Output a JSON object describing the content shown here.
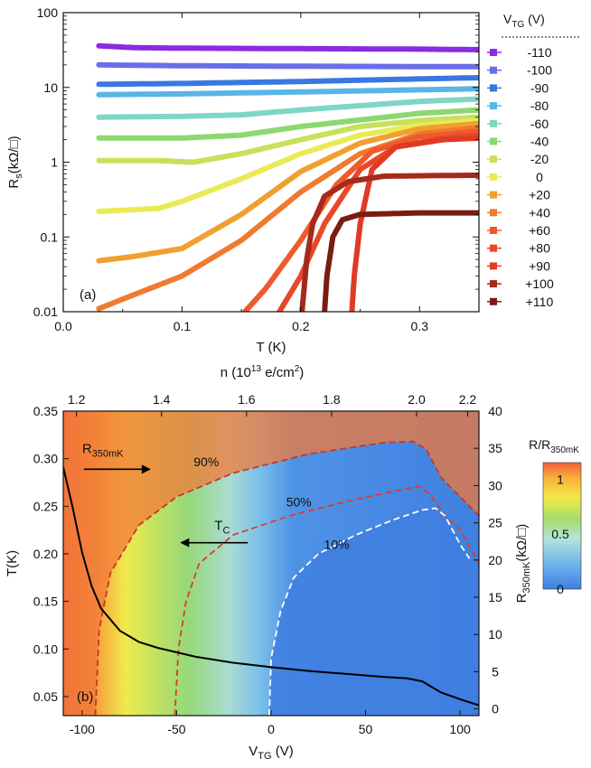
{
  "chart_data": [
    {
      "panel": "(a)",
      "type": "line",
      "xlabel": "T (K)",
      "ylabel_main": "R",
      "ylabel_sub": "s",
      "ylabel_unit": "(kΩ/□)",
      "xlim": [
        0.0,
        0.35
      ],
      "ylim": [
        0.01,
        100
      ],
      "yscale": "log",
      "x_ticks": [
        "0.0",
        "0.1",
        "0.2",
        "0.3"
      ],
      "x_tick_values": [
        0.0,
        0.1,
        0.2,
        0.3
      ],
      "y_ticks": [
        "0.01",
        "0.1",
        "1",
        "10",
        "100"
      ],
      "y_tick_values": [
        0.01,
        0.1,
        1,
        10,
        100
      ],
      "legend_title_main": "V",
      "legend_title_sub": "TG",
      "legend_title_unit": " (V)",
      "legend_position": "right",
      "series": [
        {
          "name": "-110",
          "color": "#8a2be2",
          "points": [
            [
              0.03,
              36
            ],
            [
              0.06,
              34
            ],
            [
              0.1,
              33.5
            ],
            [
              0.2,
              33
            ],
            [
              0.3,
              32.5
            ],
            [
              0.35,
              32
            ]
          ]
        },
        {
          "name": "-100",
          "color": "#6a6ee8",
          "points": [
            [
              0.03,
              20
            ],
            [
              0.1,
              19.5
            ],
            [
              0.2,
              19.2
            ],
            [
              0.3,
              19
            ],
            [
              0.35,
              19
            ]
          ]
        },
        {
          "name": "-90",
          "color": "#3a78e0",
          "points": [
            [
              0.03,
              11
            ],
            [
              0.1,
              11.3
            ],
            [
              0.2,
              12
            ],
            [
              0.3,
              13
            ],
            [
              0.35,
              13.5
            ]
          ]
        },
        {
          "name": "-80",
          "color": "#5ab4e6",
          "points": [
            [
              0.03,
              8
            ],
            [
              0.1,
              8.2
            ],
            [
              0.2,
              8.7
            ],
            [
              0.3,
              9.3
            ],
            [
              0.35,
              9.6
            ]
          ]
        },
        {
          "name": "-60",
          "color": "#7ed6c4",
          "points": [
            [
              0.03,
              4
            ],
            [
              0.1,
              4.1
            ],
            [
              0.15,
              4.3
            ],
            [
              0.2,
              5
            ],
            [
              0.3,
              6.5
            ],
            [
              0.35,
              7
            ]
          ]
        },
        {
          "name": "-40",
          "color": "#8cd86e",
          "points": [
            [
              0.03,
              2.1
            ],
            [
              0.1,
              2.1
            ],
            [
              0.15,
              2.3
            ],
            [
              0.2,
              3
            ],
            [
              0.3,
              4.5
            ],
            [
              0.35,
              5
            ]
          ]
        },
        {
          "name": "-20",
          "color": "#c8e05a",
          "points": [
            [
              0.03,
              1.05
            ],
            [
              0.08,
              1.05
            ],
            [
              0.11,
              1.0
            ],
            [
              0.15,
              1.3
            ],
            [
              0.2,
              2.0
            ],
            [
              0.25,
              3.0
            ],
            [
              0.3,
              3.6
            ],
            [
              0.35,
              4.0
            ]
          ]
        },
        {
          "name": "0",
          "color": "#eaea55",
          "points": [
            [
              0.03,
              0.22
            ],
            [
              0.08,
              0.24
            ],
            [
              0.1,
              0.3
            ],
            [
              0.15,
              0.6
            ],
            [
              0.2,
              1.3
            ],
            [
              0.25,
              2.3
            ],
            [
              0.3,
              3.1
            ],
            [
              0.35,
              3.6
            ]
          ]
        },
        {
          "name": "+20",
          "color": "#f0a030",
          "points": [
            [
              0.03,
              0.048
            ],
            [
              0.06,
              0.055
            ],
            [
              0.1,
              0.07
            ],
            [
              0.15,
              0.2
            ],
            [
              0.2,
              0.75
            ],
            [
              0.25,
              1.8
            ],
            [
              0.3,
              2.8
            ],
            [
              0.35,
              3.3
            ]
          ]
        },
        {
          "name": "+40",
          "color": "#f07a30",
          "points": [
            [
              0.03,
              0.011
            ],
            [
              0.06,
              0.017
            ],
            [
              0.1,
              0.03
            ],
            [
              0.15,
              0.09
            ],
            [
              0.2,
              0.4
            ],
            [
              0.25,
              1.3
            ],
            [
              0.3,
              2.4
            ],
            [
              0.35,
              2.9
            ]
          ]
        },
        {
          "name": "+60",
          "color": "#ef5a2c",
          "points": [
            [
              0.153,
              0.01
            ],
            [
              0.17,
              0.02
            ],
            [
              0.2,
              0.09
            ],
            [
              0.23,
              0.5
            ],
            [
              0.26,
              1.4
            ],
            [
              0.3,
              2.2
            ],
            [
              0.35,
              2.6
            ]
          ]
        },
        {
          "name": "+80",
          "color": "#e8482a",
          "points": [
            [
              0.182,
              0.01
            ],
            [
              0.2,
              0.03
            ],
            [
              0.22,
              0.15
            ],
            [
              0.25,
              0.8
            ],
            [
              0.28,
              1.6
            ],
            [
              0.32,
              2.1
            ],
            [
              0.35,
              2.3
            ]
          ]
        },
        {
          "name": "+90",
          "color": "#e03a24",
          "points": [
            [
              0.243,
              0.01
            ],
            [
              0.245,
              0.03
            ],
            [
              0.25,
              0.15
            ],
            [
              0.26,
              0.8
            ],
            [
              0.28,
              1.6
            ],
            [
              0.32,
              2.0
            ],
            [
              0.35,
              2.1
            ]
          ]
        },
        {
          "name": "+100",
          "color": "#a52a1a",
          "points": [
            [
              0.201,
              0.01
            ],
            [
              0.205,
              0.05
            ],
            [
              0.21,
              0.15
            ],
            [
              0.22,
              0.35
            ],
            [
              0.24,
              0.55
            ],
            [
              0.27,
              0.65
            ],
            [
              0.35,
              0.67
            ]
          ]
        },
        {
          "name": "+110",
          "color": "#7a1c12",
          "points": [
            [
              0.22,
              0.01
            ],
            [
              0.222,
              0.03
            ],
            [
              0.227,
              0.1
            ],
            [
              0.235,
              0.17
            ],
            [
              0.25,
              0.2
            ],
            [
              0.3,
              0.21
            ],
            [
              0.35,
              0.21
            ]
          ]
        }
      ]
    },
    {
      "panel": "(b)",
      "type": "heatmap",
      "xlabel_main": "V",
      "xlabel_sub": "TG",
      "xlabel_unit": " (V)",
      "ylabel": "T(K)",
      "top_axis_label": "n (10",
      "top_axis_label_exp": "13",
      "top_axis_label_rest": " e/cm",
      "top_axis_label_exp2": "2",
      "top_axis_label_close": ")",
      "right_axis_label_main": "R",
      "right_axis_label_sub": "350mK",
      "right_axis_label_unit": "(kΩ/□)",
      "xlim": [
        -110,
        110
      ],
      "ylim": [
        0.03,
        0.35
      ],
      "x_ticks": [
        "-100",
        "-50",
        "0",
        "50",
        "100"
      ],
      "x_tick_values": [
        -100,
        -50,
        0,
        50,
        100
      ],
      "y_ticks": [
        "0.05",
        "0.10",
        "0.15",
        "0.20",
        "0.25",
        "0.30",
        "0.35"
      ],
      "y_tick_values": [
        0.05,
        0.1,
        0.15,
        0.2,
        0.25,
        0.3,
        0.35
      ],
      "top_ticks": [
        "1.2",
        "1.4",
        "1.6",
        "1.8",
        "2.0",
        "2.2"
      ],
      "top_tick_vtg": [
        -103,
        -58,
        -13,
        32,
        77,
        104
      ],
      "right_ticks": [
        "0",
        "5",
        "10",
        "15",
        "20",
        "25",
        "30",
        "35",
        "40"
      ],
      "right_tick_values": [
        0,
        5,
        10,
        15,
        20,
        25,
        30,
        35,
        40
      ],
      "right_ylim": [
        -0.9,
        40
      ],
      "colorbar_title": "R/R",
      "colorbar_title_sub": "350mK",
      "colorbar_ticks": [
        "1",
        "0.5",
        "0"
      ],
      "colorbar_tick_values": [
        1,
        0.5,
        0
      ],
      "colorbar_range": [
        0,
        1.15
      ],
      "contours": [
        {
          "label": "90%",
          "color": "#c0392b",
          "points": [
            [
              -93,
              0.03
            ],
            [
              -91,
              0.12
            ],
            [
              -85,
              0.18
            ],
            [
              -70,
              0.23
            ],
            [
              -50,
              0.26
            ],
            [
              -20,
              0.285
            ],
            [
              20,
              0.305
            ],
            [
              60,
              0.317
            ],
            [
              75,
              0.318
            ],
            [
              82,
              0.31
            ],
            [
              90,
              0.28
            ],
            [
              100,
              0.26
            ],
            [
              110,
              0.24
            ]
          ]
        },
        {
          "label": "50%",
          "color": "#e03a2a",
          "points": [
            [
              -51,
              0.03
            ],
            [
              -49,
              0.1
            ],
            [
              -45,
              0.15
            ],
            [
              -38,
              0.19
            ],
            [
              -20,
              0.22
            ],
            [
              10,
              0.24
            ],
            [
              40,
              0.255
            ],
            [
              70,
              0.268
            ],
            [
              78,
              0.271
            ],
            [
              84,
              0.263
            ],
            [
              92,
              0.24
            ],
            [
              100,
              0.225
            ],
            [
              110,
              0.19
            ]
          ]
        },
        {
          "label": "10%",
          "color": "#ffffff",
          "points": [
            [
              -1,
              0.03
            ],
            [
              0,
              0.09
            ],
            [
              5,
              0.14
            ],
            [
              12,
              0.175
            ],
            [
              25,
              0.2
            ],
            [
              45,
              0.22
            ],
            [
              65,
              0.236
            ],
            [
              80,
              0.246
            ],
            [
              87,
              0.248
            ],
            [
              92,
              0.24
            ],
            [
              100,
              0.21
            ],
            [
              105,
              0.195
            ]
          ]
        }
      ],
      "r350_curve": {
        "color": "#000000",
        "points": [
          [
            -110,
            32.5
          ],
          [
            -105,
            27
          ],
          [
            -100,
            21
          ],
          [
            -95,
            16.5
          ],
          [
            -90,
            13.5
          ],
          [
            -80,
            10.5
          ],
          [
            -70,
            9
          ],
          [
            -60,
            8.2
          ],
          [
            -40,
            7
          ],
          [
            -20,
            6.2
          ],
          [
            0,
            5.6
          ],
          [
            20,
            5.1
          ],
          [
            40,
            4.7
          ],
          [
            60,
            4.3
          ],
          [
            72,
            4.1
          ],
          [
            80,
            3.7
          ],
          [
            90,
            2.2
          ],
          [
            100,
            1.3
          ],
          [
            110,
            0.5
          ]
        ]
      },
      "annotations": [
        {
          "id": "r350",
          "text_main": "R",
          "text_sub": "350mK",
          "arrow": "right",
          "v": -100,
          "t": 0.306
        },
        {
          "id": "tc",
          "text_main": "T",
          "text_sub": "C",
          "arrow": "left",
          "v": -30,
          "t": 0.225
        },
        {
          "id": "c90",
          "text": "90%",
          "v": -41,
          "t": 0.292
        },
        {
          "id": "c50",
          "text": "50%",
          "v": 8,
          "t": 0.25
        },
        {
          "id": "c10",
          "text": "10%",
          "v": 28,
          "t": 0.205
        }
      ]
    }
  ]
}
